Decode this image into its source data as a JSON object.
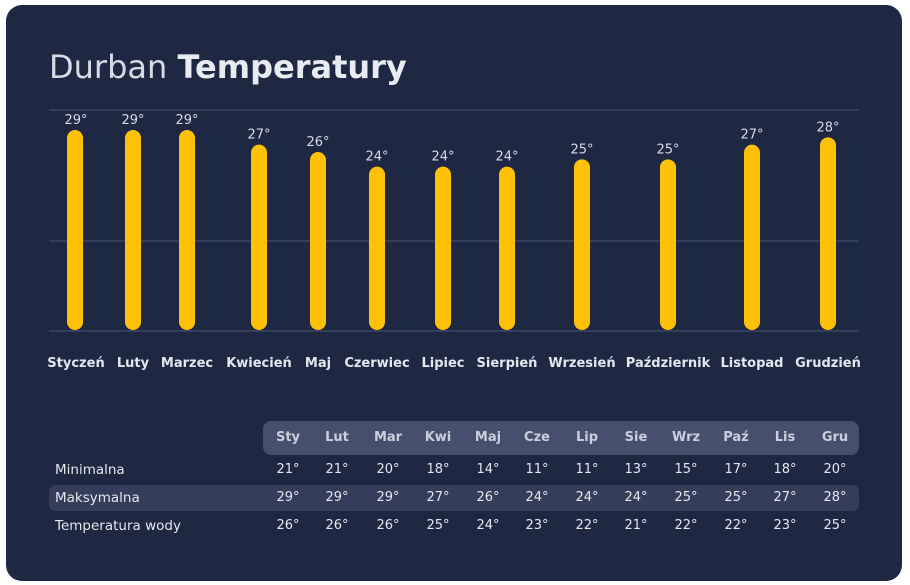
{
  "header": {
    "city": "Durban",
    "title_word": "Temperatury"
  },
  "colors": {
    "background": "#1e2842",
    "bar": "#ffc107",
    "grid": "#4c5573",
    "table_header": "#46506e",
    "highlight_row": "#343e5b"
  },
  "chart_data": {
    "type": "bar",
    "categories": [
      "Styczeń",
      "Luty",
      "Marzec",
      "Kwiecień",
      "Maj",
      "Czerwiec",
      "Lipiec",
      "Sierpień",
      "Wrzesień",
      "Październik",
      "Listopad",
      "Grudzień"
    ],
    "values": [
      29,
      29,
      29,
      27,
      26,
      24,
      24,
      24,
      25,
      25,
      27,
      28
    ],
    "value_labels": [
      "29°",
      "29°",
      "29°",
      "27°",
      "26°",
      "24°",
      "24°",
      "24°",
      "25°",
      "25°",
      "27°",
      "28°"
    ],
    "grid": true
  },
  "table": {
    "columns": [
      "Sty",
      "Lut",
      "Mar",
      "Kwi",
      "Maj",
      "Cze",
      "Lip",
      "Sie",
      "Wrz",
      "Paź",
      "Lis",
      "Gru"
    ],
    "rows": [
      {
        "label": "Minimalna",
        "values": [
          "21°",
          "21°",
          "20°",
          "18°",
          "14°",
          "11°",
          "11°",
          "13°",
          "15°",
          "17°",
          "18°",
          "20°"
        ]
      },
      {
        "label": "Maksymalna",
        "values": [
          "29°",
          "29°",
          "29°",
          "27°",
          "26°",
          "24°",
          "24°",
          "24°",
          "25°",
          "25°",
          "27°",
          "28°"
        ]
      },
      {
        "label": "Temperatura wody",
        "values": [
          "26°",
          "26°",
          "26°",
          "25°",
          "24°",
          "23°",
          "22°",
          "21°",
          "22°",
          "22°",
          "23°",
          "25°"
        ]
      }
    ]
  }
}
